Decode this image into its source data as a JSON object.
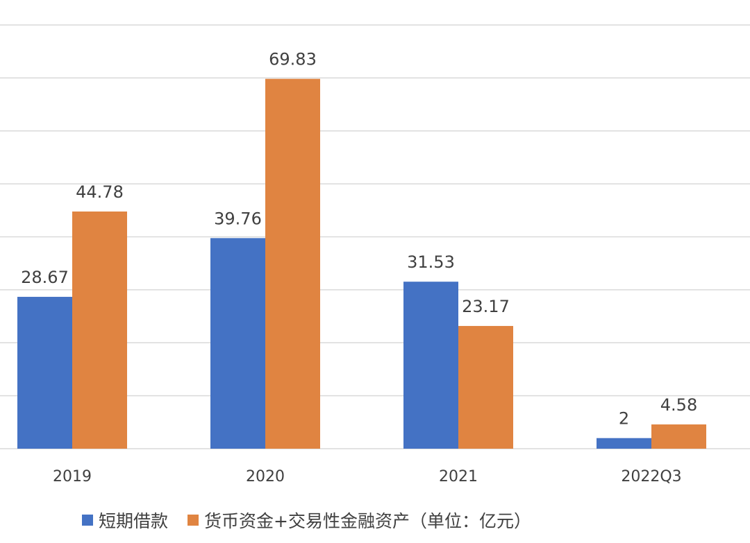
{
  "chart_data": {
    "type": "bar",
    "categories": [
      "2019",
      "2020",
      "2021",
      "2022Q3"
    ],
    "series": [
      {
        "name": "短期借款",
        "values": [
          28.67,
          39.76,
          31.53,
          2
        ],
        "color": "#4472C4"
      },
      {
        "name": "货币资金+交易性金融资产（单位：亿元）",
        "values": [
          44.78,
          69.83,
          23.17,
          4.58
        ],
        "color": "#E08441"
      }
    ],
    "data_labels": [
      [
        "28.67",
        "39.76",
        "31.53",
        "2"
      ],
      [
        "44.78",
        "69.83",
        "23.17",
        "4.58"
      ]
    ],
    "ylim": [
      0,
      80
    ],
    "y_gridline_step": 10,
    "grid": true,
    "legend_position": "bottom-left"
  }
}
